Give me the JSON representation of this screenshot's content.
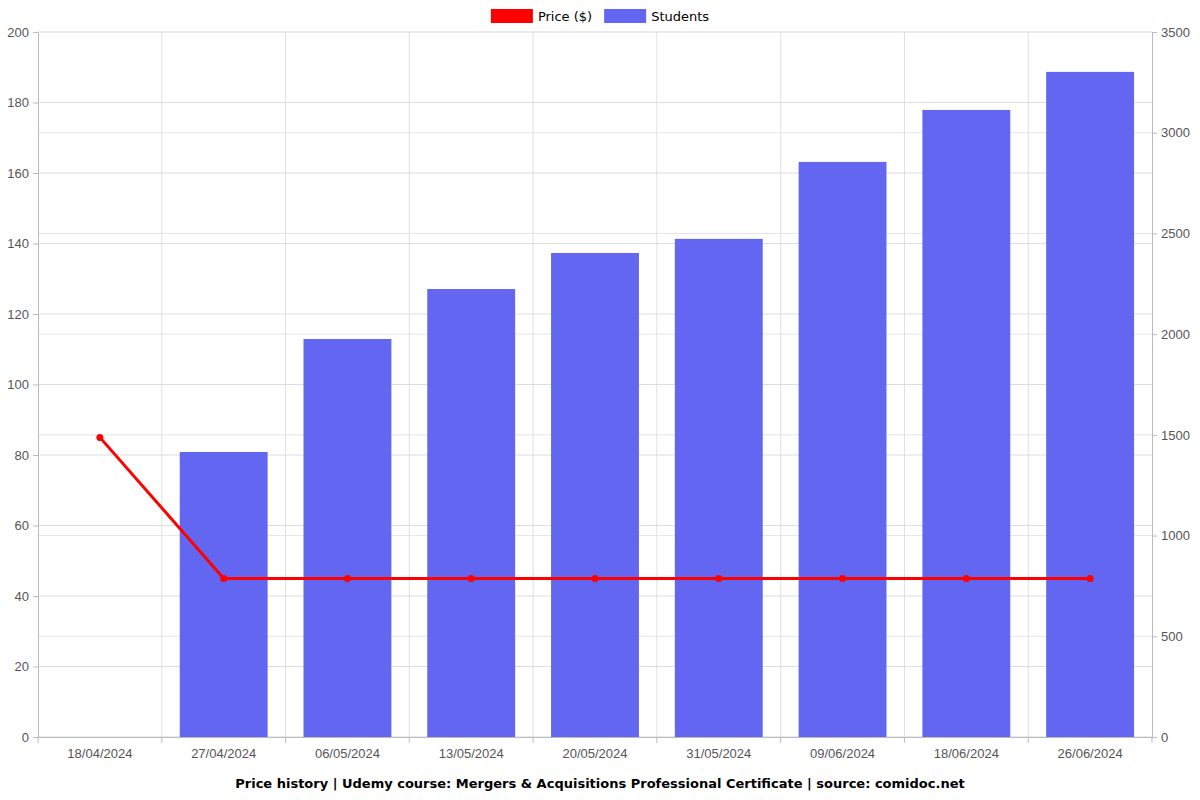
{
  "chart_data": {
    "type": "bar",
    "title": "Price history | Udemy course: Mergers & Acquisitions Professional Certificate | source: comidoc.net",
    "categories": [
      "18/04/2024",
      "27/04/2024",
      "06/05/2024",
      "13/05/2024",
      "20/05/2024",
      "31/05/2024",
      "09/06/2024",
      "18/06/2024",
      "26/06/2024"
    ],
    "series": [
      {
        "name": "Price ($)",
        "color": "#ff0000",
        "type": "line",
        "marker": "circle",
        "values": [
          85,
          45,
          45,
          45,
          45,
          45,
          45,
          45,
          45
        ]
      },
      {
        "name": "Students",
        "color": "#6366f1",
        "type": "bar",
        "axis": "y2",
        "values": [
          null,
          1415,
          1976,
          2224,
          2403,
          2473,
          2855,
          3113,
          3302
        ]
      }
    ],
    "ylim": [
      0,
      200
    ],
    "yticks": [
      0,
      20,
      40,
      60,
      80,
      100,
      120,
      140,
      160,
      180,
      200
    ],
    "y2lim": [
      0,
      3500
    ],
    "y2ticks": [
      0,
      500,
      1000,
      1500,
      2000,
      2500,
      3000,
      3500
    ],
    "grid": true,
    "legend": "top"
  }
}
